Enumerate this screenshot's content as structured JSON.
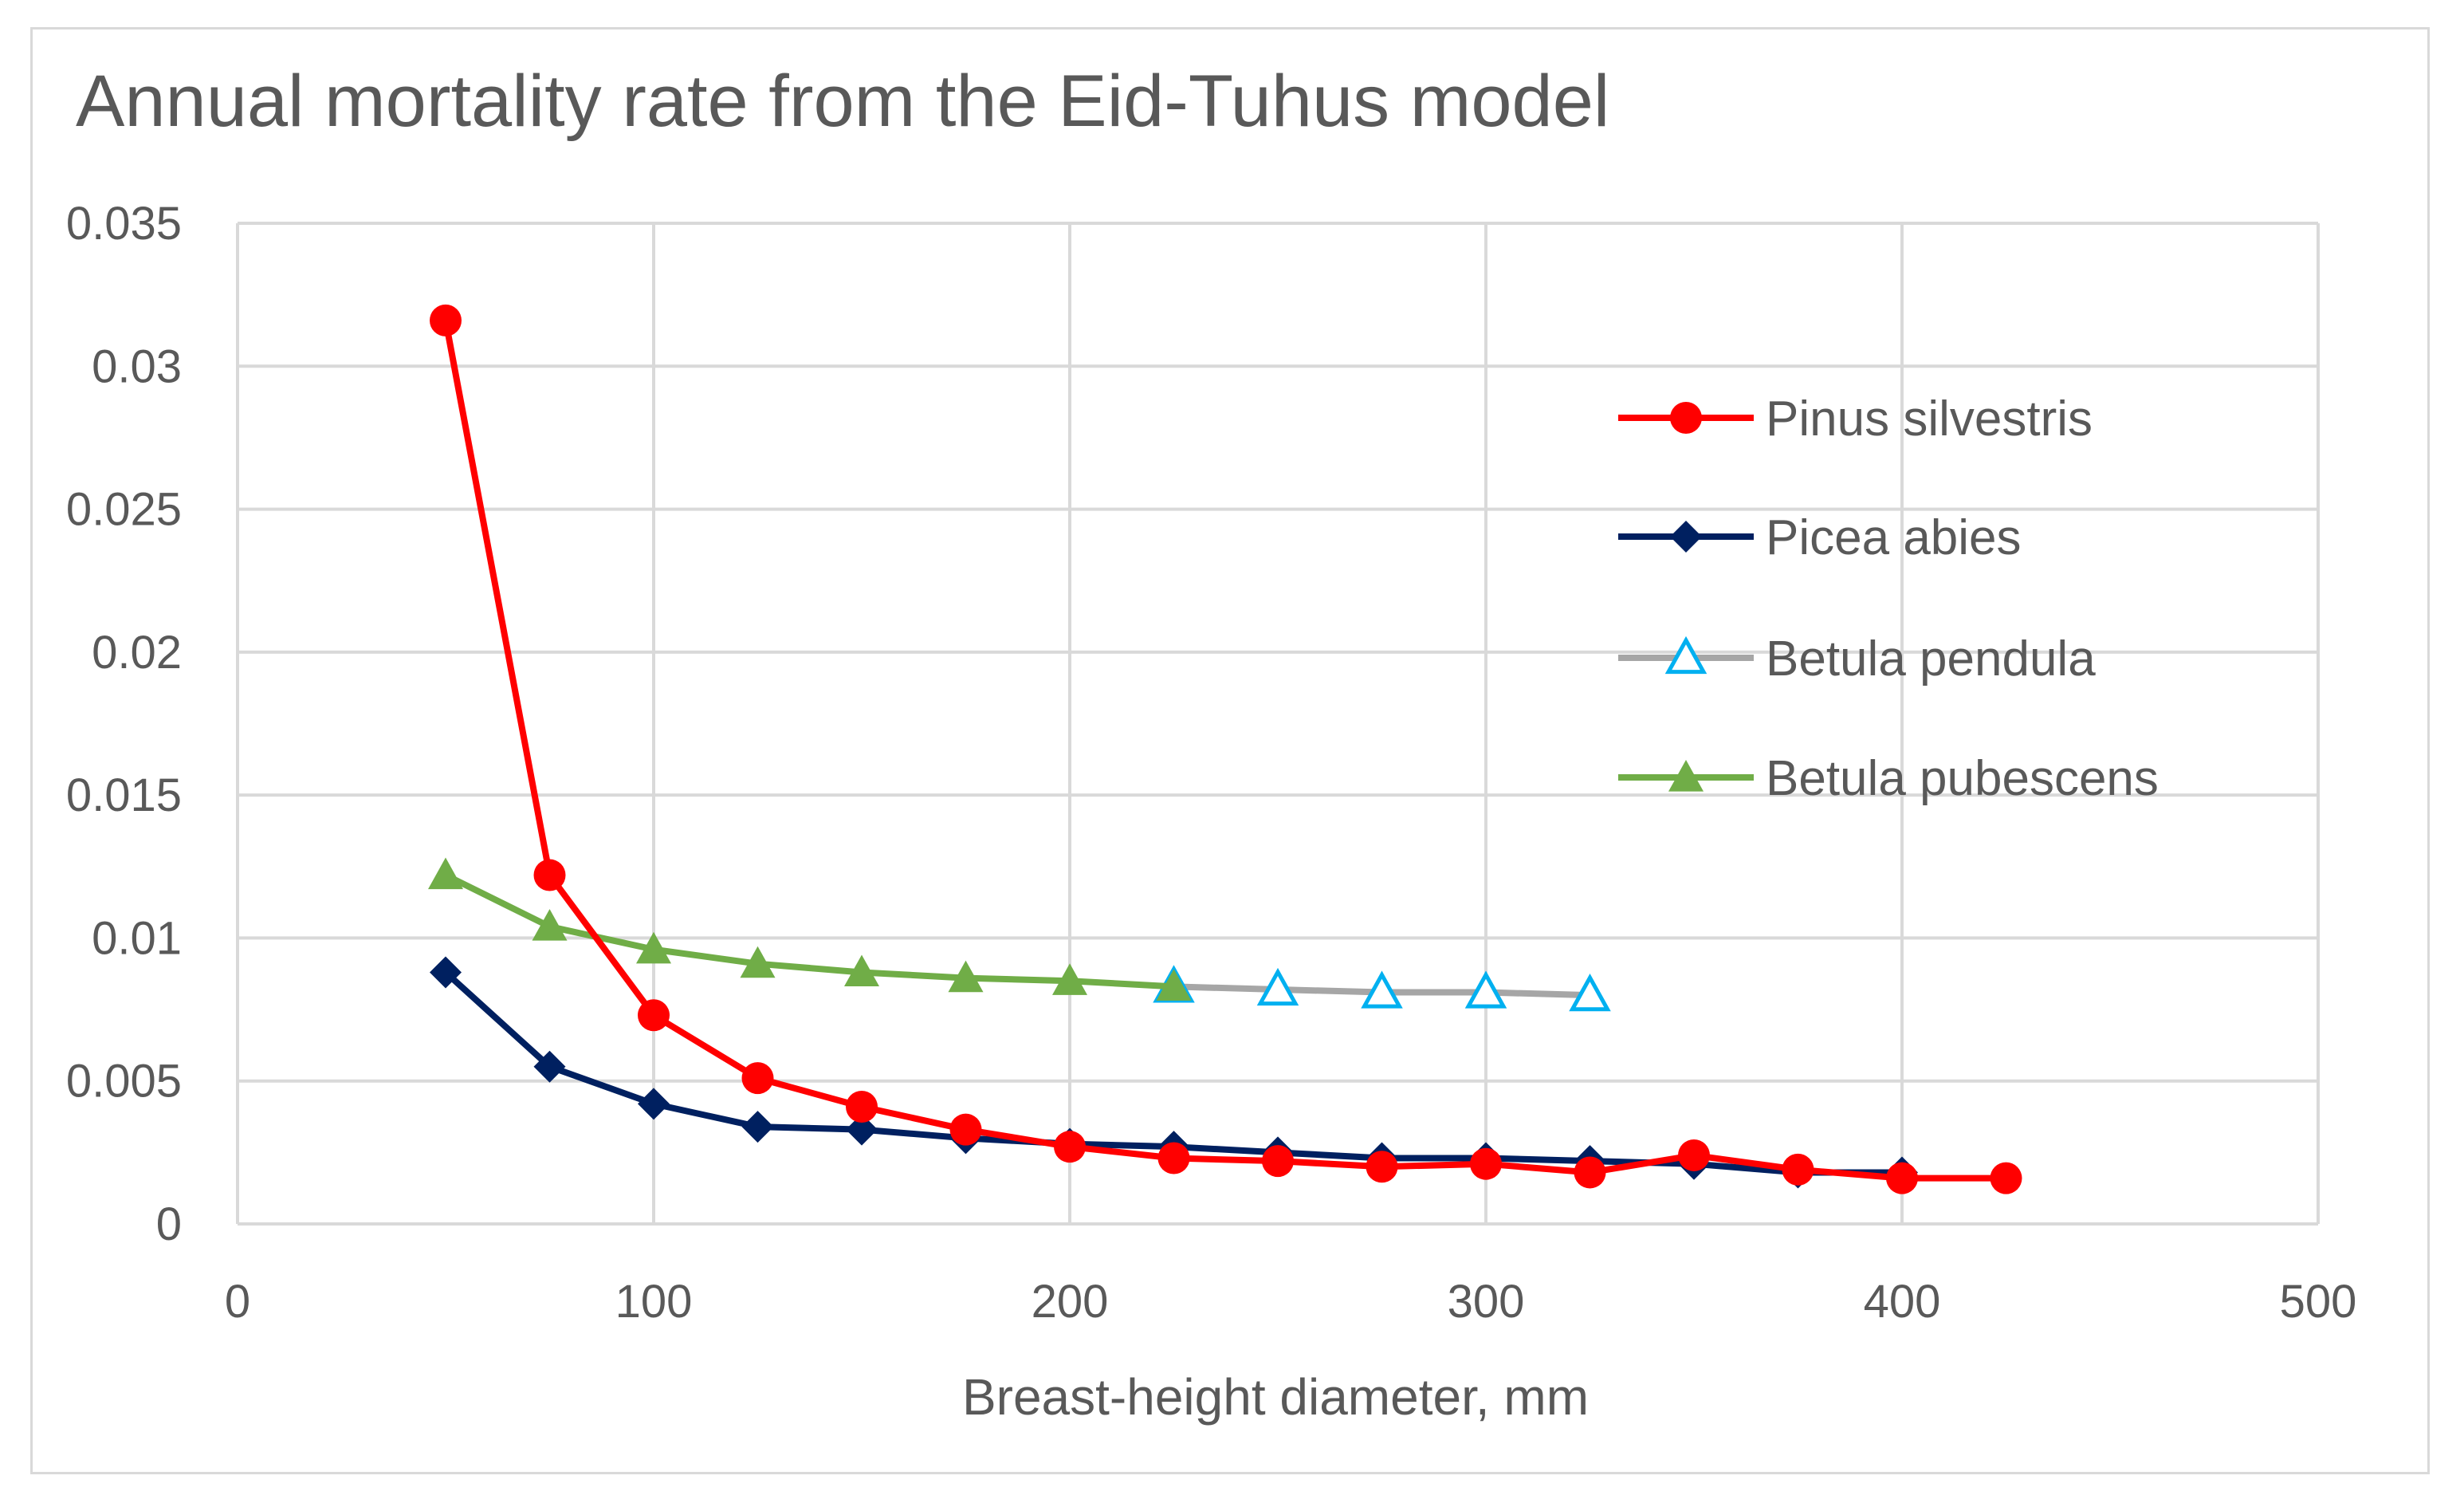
{
  "chart_data": {
    "type": "line",
    "title": "Annual mortality rate from the Eid-Tuhus model",
    "xlabel": "Breast-height diameter, mm",
    "ylabel": "",
    "xlim": [
      0,
      500
    ],
    "ylim": [
      0,
      0.035
    ],
    "x_ticks": [
      "0",
      "100",
      "200",
      "300",
      "400",
      "500"
    ],
    "y_ticks": [
      "0",
      "0.005",
      "0.01",
      "0.015",
      "0.02",
      "0.025",
      "0.03",
      "0.035"
    ],
    "grid": true,
    "legend_position": "right",
    "series": [
      {
        "name": "Pinus silvestris",
        "color": "#ff0000",
        "marker": "circle",
        "x": [
          50,
          75,
          100,
          125,
          150,
          175,
          200,
          225,
          250,
          275,
          300,
          325,
          350,
          375,
          400,
          425
        ],
        "y": [
          0.0316,
          0.0122,
          0.0073,
          0.0051,
          0.0041,
          0.0033,
          0.0027,
          0.0023,
          0.0022,
          0.002,
          0.0021,
          0.0018,
          0.0024,
          0.0019,
          0.0016,
          0.0016
        ]
      },
      {
        "name": "Picea abies",
        "color": "#002060",
        "marker": "diamond",
        "x": [
          50,
          75,
          100,
          125,
          150,
          175,
          200,
          225,
          250,
          275,
          300,
          325,
          350,
          375,
          400
        ],
        "y": [
          0.0088,
          0.0055,
          0.0042,
          0.0034,
          0.0033,
          0.003,
          0.0028,
          0.0027,
          0.0025,
          0.0023,
          0.0023,
          0.0022,
          0.0021,
          0.0018,
          0.0018
        ]
      },
      {
        "name": "Betula pendula",
        "color": "#a6a6a6",
        "marker_color": "#00b0f0",
        "marker": "triangle-open",
        "x": [
          225,
          250,
          275,
          300,
          325
        ],
        "y": [
          0.0083,
          0.0082,
          0.0081,
          0.0081,
          0.008
        ]
      },
      {
        "name": "Betula pubescens",
        "color": "#70ad47",
        "marker": "triangle",
        "x": [
          50,
          75,
          100,
          125,
          150,
          175,
          200,
          225
        ],
        "y": [
          0.0122,
          0.0104,
          0.0096,
          0.0091,
          0.0088,
          0.0086,
          0.0085,
          0.0083
        ]
      }
    ]
  }
}
